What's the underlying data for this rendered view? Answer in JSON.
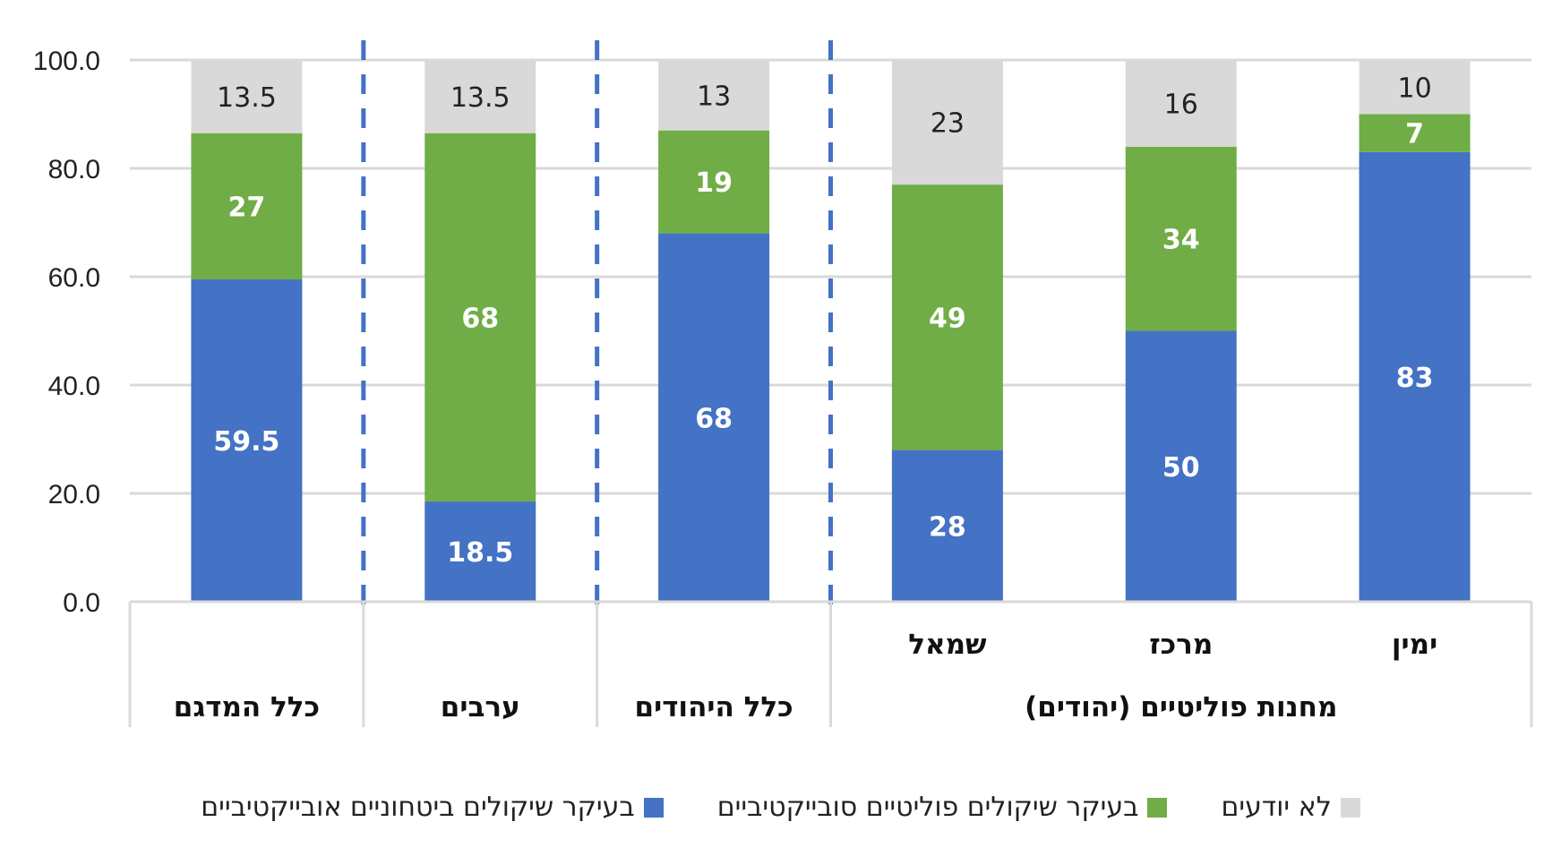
{
  "chart_data": {
    "type": "bar",
    "stacked": true,
    "ylim": [
      0,
      100
    ],
    "yticks": [
      "0.0",
      "20.0",
      "40.0",
      "60.0",
      "80.0",
      "100.0"
    ],
    "grid": true,
    "legend_position": "bottom",
    "categories": [
      "כלל המדגם",
      "ערבים",
      "כלל היהודים",
      "שמאל",
      "מרכז",
      "ימין"
    ],
    "group_label": "מחנות פוליטיים (יהודים)",
    "series": [
      {
        "name": "בעיקר שיקולים ביטחוניים אובייקטיביים",
        "color": "#4472C4",
        "values": [
          59.5,
          18.5,
          68,
          28,
          50,
          83
        ],
        "labels": [
          "59.5",
          "18.5",
          "68",
          "28",
          "50",
          "83"
        ]
      },
      {
        "name": "בעיקר שיקולים פוליטיים סובייקטיביים",
        "color": "#70AD47",
        "values": [
          27,
          68,
          19,
          49,
          34,
          7
        ],
        "labels": [
          "27",
          "68",
          "19",
          "49",
          "34",
          "7"
        ]
      },
      {
        "name": "לא יודעים",
        "color": "#D9D9D9",
        "values": [
          13.5,
          13.5,
          13,
          23,
          16,
          10
        ],
        "labels": [
          "13.5",
          "13.5",
          "13",
          "23",
          "16",
          "10"
        ]
      }
    ]
  }
}
